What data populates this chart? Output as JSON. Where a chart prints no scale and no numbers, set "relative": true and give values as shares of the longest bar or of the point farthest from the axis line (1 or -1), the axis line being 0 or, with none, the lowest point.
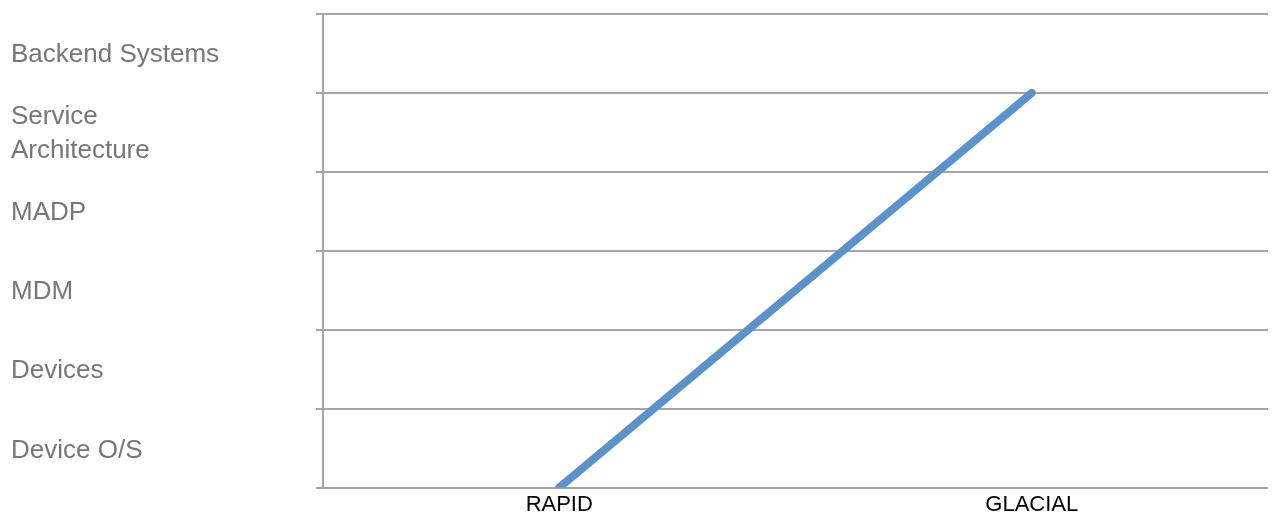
{
  "chart_data": {
    "type": "line",
    "relative": true,
    "categories": [
      "RAPID",
      "GLACIAL"
    ],
    "annotations": [
      "Backend Systems",
      "Service Architecture",
      "MADP",
      "MDM",
      "Devices",
      "Device O/S"
    ],
    "grid": "y",
    "series": [
      {
        "color": "#5b92c9",
        "values": [
          0,
          1
        ]
      }
    ]
  }
}
